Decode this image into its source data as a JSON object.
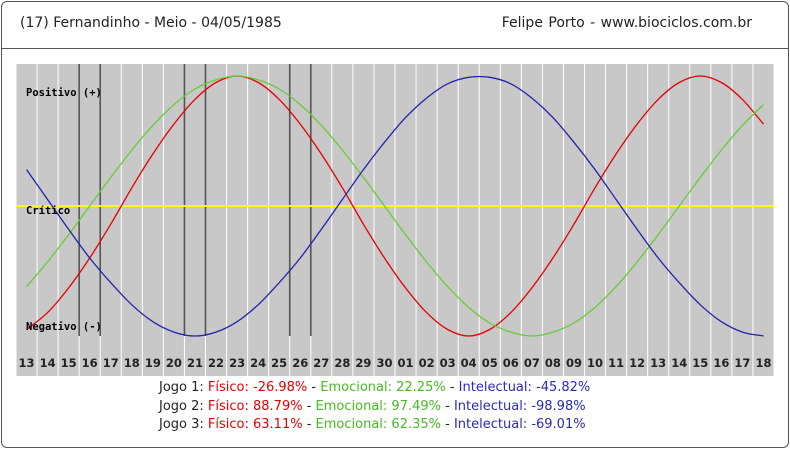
{
  "header": {
    "left": "(17)  Fernandinho - Meio -  04/05/1985",
    "right": "Felipe Porto   -   www.biociclos.com.br"
  },
  "colors": {
    "fisico": "#e60000",
    "emocional": "#66cc33",
    "intelectual": "#2222aa",
    "critico": "#ffff00",
    "background": "#c8c8c8",
    "gridline": "#ffffff",
    "marker": "#555555"
  },
  "chart_data": {
    "type": "line",
    "labels": {
      "positivo": "Positivo (+)",
      "critico": "Crítico",
      "negativo": "Negativo (-)"
    },
    "x": [
      "13",
      "14",
      "15",
      "16",
      "17",
      "18",
      "19",
      "20",
      "21",
      "22",
      "23",
      "24",
      "25",
      "26",
      "27",
      "28",
      "29",
      "30",
      "01",
      "02",
      "03",
      "04",
      "05",
      "06",
      "07",
      "08",
      "09",
      "10",
      "11",
      "12",
      "13",
      "14",
      "15",
      "16",
      "17",
      "18"
    ],
    "ylim": [
      -100,
      100
    ],
    "grid": true,
    "game_markers": [
      "16",
      "17",
      "21",
      "22",
      "26",
      "27"
    ],
    "series": [
      {
        "name": "Físico",
        "color": "#e60000",
        "values": [
          -95,
          -82,
          -63,
          -40,
          -14,
          14,
          40,
          63,
          82,
          95,
          100,
          95,
          82,
          63,
          40,
          14,
          -14,
          -40,
          -63,
          -82,
          -95,
          -100,
          -95,
          -82,
          -63,
          -40,
          -14,
          14,
          40,
          63,
          82,
          95,
          100,
          95,
          82,
          63
        ]
      },
      {
        "name": "Emocional",
        "color": "#66cc33",
        "values": [
          -62,
          -43,
          -22,
          0,
          22,
          43,
          62,
          78,
          90,
          97,
          100,
          97,
          90,
          78,
          62,
          43,
          22,
          0,
          -22,
          -43,
          -62,
          -78,
          -90,
          -97,
          -100,
          -97,
          -90,
          -78,
          -62,
          -43,
          -22,
          0,
          22,
          43,
          62,
          78
        ]
      },
      {
        "name": "Intelectual",
        "color": "#2222aa",
        "values": [
          28,
          5,
          -18,
          -40,
          -59,
          -76,
          -89,
          -97,
          -100,
          -97,
          -89,
          -76,
          -59,
          -40,
          -18,
          5,
          28,
          49,
          68,
          83,
          94,
          99,
          99,
          94,
          83,
          68,
          49,
          28,
          5,
          -18,
          -40,
          -59,
          -76,
          -89,
          -97,
          -100
        ]
      }
    ]
  },
  "games": [
    {
      "label": "Jogo 1:",
      "fisico": "Físico: -26.98%",
      "emocional": "Emocional: 22.25%",
      "intelectual": "Intelectual: -45.82%"
    },
    {
      "label": "Jogo 2:",
      "fisico": "Físico: 88.79%",
      "emocional": "Emocional: 97.49%",
      "intelectual": "Intelectual: -98.98%"
    },
    {
      "label": "Jogo 3:",
      "fisico": "Físico: 63.11%",
      "emocional": "Emocional: 62.35%",
      "intelectual": "Intelectual: -69.01%"
    }
  ],
  "separator": " - "
}
